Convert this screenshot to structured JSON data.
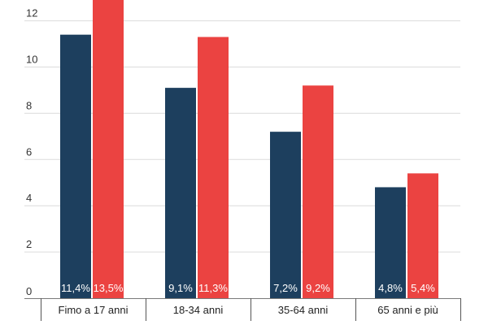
{
  "chart_data": {
    "type": "bar",
    "categories": [
      "Fimo a 17 anni",
      "18-34 anni",
      "35-64 anni",
      "65 anni e più"
    ],
    "series": [
      {
        "color": "#1d3f5e",
        "values": [
          11.4,
          9.1,
          7.2,
          4.8
        ],
        "labels": [
          "11,4%",
          "9,1%",
          "7,2%",
          "4,8%"
        ]
      },
      {
        "color": "#eb4341",
        "values": [
          13.5,
          11.3,
          9.2,
          5.4
        ],
        "labels": [
          "13,5%",
          "11,3%",
          "9,2%",
          "5,4%"
        ]
      }
    ],
    "yticks": [
      0,
      2,
      4,
      6,
      8,
      10,
      12
    ],
    "ylim": [
      0,
      12.9
    ],
    "grid": true,
    "legend": "none",
    "title": "",
    "xlabel": "",
    "ylabel": ""
  }
}
